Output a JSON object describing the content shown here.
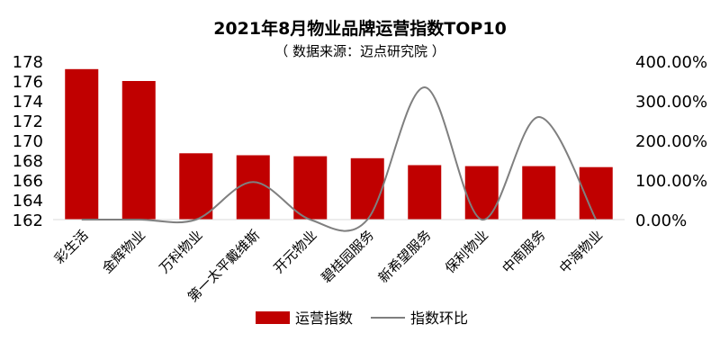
{
  "chart_data": {
    "type": "bar",
    "title": "2021年8月物业品牌运营指数TOP10",
    "subtitle": "（ 数据来源：迈点研究院 ）",
    "categories": [
      "彩生活",
      "金辉物业",
      "万科物业",
      "第一太平戴维斯",
      "开元物业",
      "碧桂园服务",
      "新希望服务",
      "保利物业",
      "中南服务",
      "中海物业"
    ],
    "series": [
      {
        "name": "运营指数",
        "type": "bar",
        "axis": "left",
        "color": "#c00000",
        "values": [
          177.2,
          176.0,
          168.7,
          168.5,
          168.4,
          168.2,
          167.5,
          167.4,
          167.4,
          167.3
        ]
      },
      {
        "name": "指数环比",
        "type": "line",
        "axis": "right",
        "color": "#7f7f7f",
        "values": [
          0,
          0,
          0,
          95,
          0,
          0,
          334,
          0,
          259,
          0
        ]
      }
    ],
    "left_axis": {
      "ylim": [
        162,
        178
      ],
      "ticks": [
        "162",
        "164",
        "166",
        "168",
        "170",
        "172",
        "174",
        "176",
        "178"
      ]
    },
    "right_axis": {
      "ylim": [
        0,
        400
      ],
      "ticks": [
        "0.00%",
        "100.00%",
        "200.00%",
        "300.00%",
        "400.00%"
      ]
    },
    "legend": "bottom",
    "grid": false
  }
}
